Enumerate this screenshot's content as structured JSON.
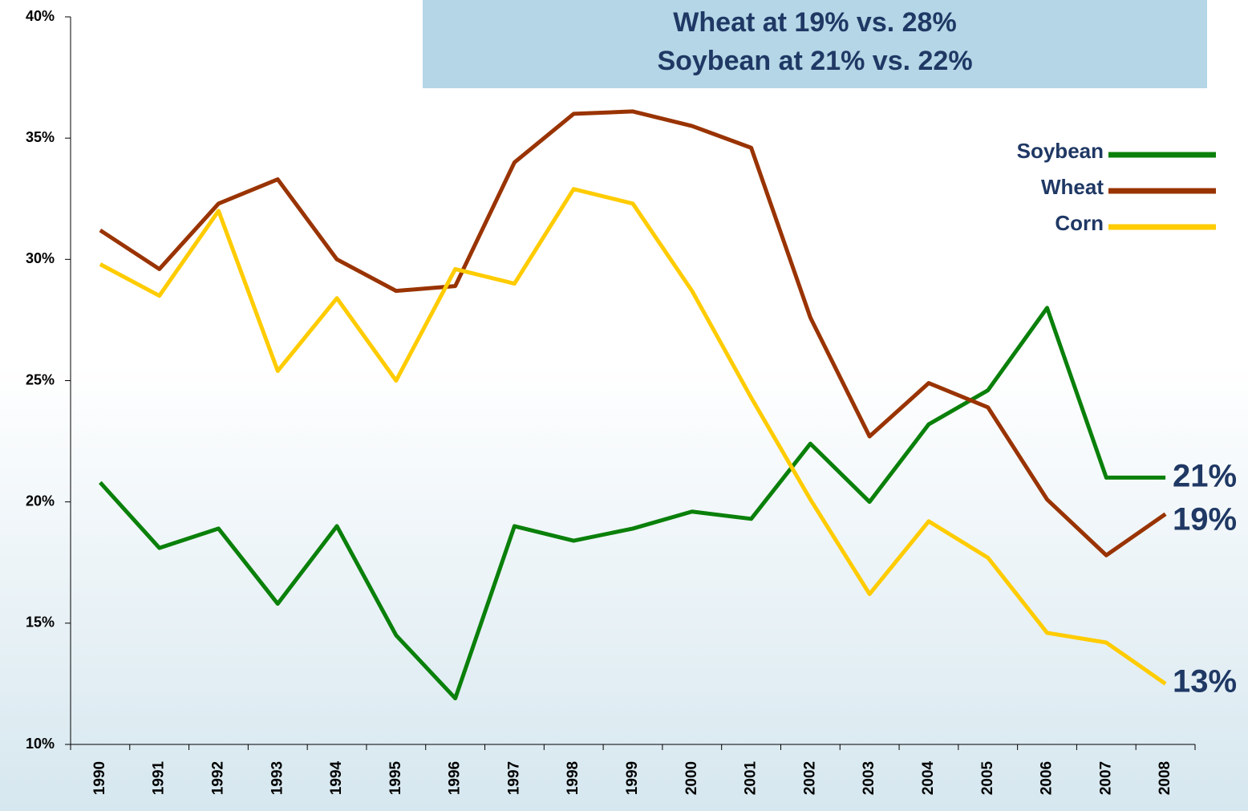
{
  "chart_data": {
    "type": "line",
    "title_lines": [
      "Wheat at 19% vs. 28%",
      "Soybean at 21% vs. 22%"
    ],
    "categories": [
      "1990",
      "1991",
      "1992",
      "1993",
      "1994",
      "1995",
      "1996",
      "1997",
      "1998",
      "1999",
      "2000",
      "2001",
      "2002",
      "2003",
      "2004",
      "2005",
      "2006",
      "2007",
      "2008"
    ],
    "series": [
      {
        "name": "Soybean",
        "color": "#0a800a",
        "values": [
          20.8,
          18.1,
          18.9,
          15.8,
          19.0,
          14.5,
          11.9,
          19.0,
          18.4,
          18.9,
          19.6,
          19.3,
          22.4,
          20.0,
          23.2,
          24.6,
          28.0,
          21.0,
          21.0
        ]
      },
      {
        "name": "Wheat",
        "color": "#993300",
        "values": [
          31.2,
          29.6,
          32.3,
          33.3,
          30.0,
          28.7,
          28.9,
          34.0,
          36.0,
          36.1,
          35.5,
          34.6,
          27.6,
          22.7,
          24.9,
          23.9,
          20.1,
          17.8,
          19.5
        ]
      },
      {
        "name": "Corn",
        "color": "#ffcc00",
        "values": [
          29.8,
          28.5,
          32.0,
          25.4,
          28.4,
          25.0,
          29.6,
          29.0,
          32.9,
          32.3,
          28.7,
          24.3,
          20.1,
          16.2,
          19.2,
          17.7,
          14.6,
          14.2,
          12.5
        ]
      }
    ],
    "ylim": [
      10,
      40
    ],
    "yticks": [
      {
        "value": 10,
        "label": "10%"
      },
      {
        "value": 15,
        "label": "15%"
      },
      {
        "value": 20,
        "label": "20%"
      },
      {
        "value": 25,
        "label": "25%"
      },
      {
        "value": 30,
        "label": "30%"
      },
      {
        "value": 35,
        "label": "35%"
      },
      {
        "value": 40,
        "label": "40%"
      }
    ],
    "annotations": [
      "21%",
      "19%",
      "13%"
    ],
    "legend": "upper right"
  }
}
